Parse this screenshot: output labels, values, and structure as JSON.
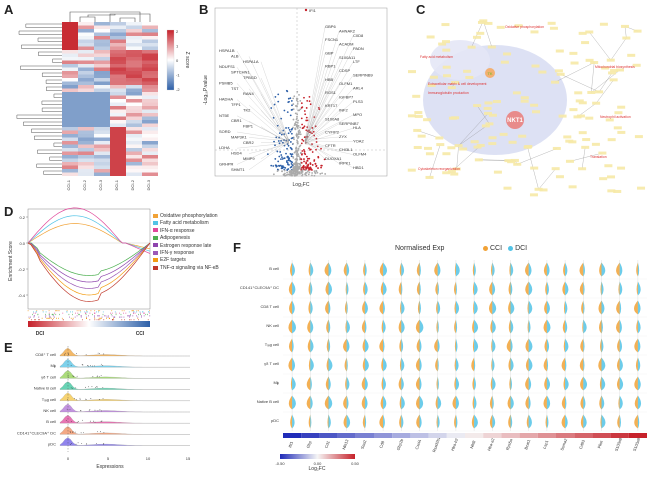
{
  "panels": {
    "a": {
      "label": "A"
    },
    "b": {
      "label": "B"
    },
    "c": {
      "label": "C"
    },
    "d": {
      "label": "D"
    },
    "e": {
      "label": "E"
    },
    "f": {
      "label": "F"
    }
  },
  "colors": {
    "red": "#c6212a",
    "blue": "#2c5fa8",
    "orange": "#f1a236",
    "cyan": "#52c3e6",
    "grey": "#9a9a9a"
  },
  "heatmap": {
    "legend_title": "Z score",
    "legend_ticks": [
      "2",
      "1",
      "0",
      "-1",
      "-2"
    ],
    "columns": [
      "CCI-1",
      "CCI-2",
      "CCI-3",
      "DCI-1",
      "DCI-2",
      "DCI-3"
    ]
  },
  "volcano": {
    "ylabel": "-Log₁₀P.value",
    "xlabel": "Log₂FC",
    "top_label": "IFI1",
    "genes_left": [
      "HSPA1B",
      "ALB",
      "HSPA1A",
      "NDUFS1",
      "SPTCHN1",
      "TPBGD",
      "PSMB5",
      "TST",
      "RAN4",
      "HADHA",
      "TFP1",
      "TK2",
      "NT5E",
      "CBR1",
      "FBP1",
      "SORD",
      "MAP3K1",
      "CBR2",
      "LDHA",
      "HSD4",
      "MMP9",
      "GRHPR",
      "SHMT1"
    ],
    "genes_right": [
      "GBP6",
      "AHNAK2",
      "C0D8",
      "FSCN1",
      "ACADM",
      "PADN",
      "GBP",
      "S100A11",
      "LTF",
      "RBP1",
      "CDSP",
      "SERPINB9",
      "HBB",
      "OLFM1",
      "ARL4",
      "RGS1",
      "IGFBP7",
      "PLS3",
      "KRT17",
      "INF2",
      "MPO",
      "S100A8",
      "SERPINB7",
      "HLA",
      "CYFIP2",
      "ZYX",
      "YOA2",
      "CFTR",
      "CHI3L1",
      "OLFM4",
      "DUOXA1",
      "IRPK1",
      "HBD1"
    ]
  },
  "network": {
    "hub": "NKT1",
    "hub2": "TK",
    "modules": [
      "Fatty acid metabolism",
      "Oxidative phosphorylation",
      "Mitochondrial biosynthesis",
      "Neutrophil activation",
      "Translation",
      "Cytoskeleton reorganization",
      "Extracellular matrix & cell development",
      "Immunoglobulin production"
    ]
  },
  "gsea": {
    "ylabel": "Enrichment Score",
    "yticks": [
      "0.2",
      "0.0",
      "-0.2",
      "-0.4"
    ],
    "x_left": "DCI",
    "x_right": "CCI",
    "legend": [
      {
        "name": "Oxidative phosphorylation",
        "color": "#f1a236"
      },
      {
        "name": "Fatty acid metabolism",
        "color": "#52c3e6"
      },
      {
        "name": "IFN-α response",
        "color": "#e0479a"
      },
      {
        "name": "Adipogenesis",
        "color": "#4caf50"
      },
      {
        "name": "Estrogen response late",
        "color": "#8e44ad"
      },
      {
        "name": "IFN-γ response",
        "color": "#9b59b6"
      },
      {
        "name": "E2F targets",
        "color": "#f39c12"
      },
      {
        "name": "TNF-α signaling via NF-κB",
        "color": "#c0392b"
      }
    ]
  },
  "ridge": {
    "xlabel": "Expressions",
    "xticks": [
      "0",
      "5",
      "10",
      "15"
    ],
    "rows": [
      "CD8⁺ T cell",
      "Mɸ",
      "γδ T cell",
      "Native B cell",
      "Tᵣₑg cell",
      "NK cell",
      "B cell",
      "CD141⁺CLEC9A⁺ DC",
      "pDC"
    ]
  },
  "violin": {
    "title": "Normalised Exp",
    "legend": [
      {
        "name": "CCI",
        "color": "#f1a236"
      },
      {
        "name": "DCI",
        "color": "#52c3e6"
      }
    ],
    "rows": [
      "B cell",
      "CD141⁺CLEC9A⁺ DC",
      "CD8 T cell",
      "NK cell",
      "Tᵣₑg cell",
      "γδ T cell",
      "Mɸ",
      "Native B cell",
      "pDC"
    ],
    "genes": [
      "Ifit1",
      "Gbp",
      "Cd1",
      "Nkt13",
      "Saa2",
      "Cd8",
      "Gbp2b",
      "Cxcl4",
      "Rsad2b1",
      "Hba-b2",
      "Nkt8",
      "Hba-a2",
      "Rps5a",
      "Bcat1",
      "Lsp1",
      "Ssma2",
      "Cd93",
      "Pkst",
      "S100a8",
      "S100a9"
    ],
    "colorbar_label": "Log₂FC",
    "colorbar_ticks": [
      "-0.50",
      "0.00",
      "0.50"
    ]
  }
}
